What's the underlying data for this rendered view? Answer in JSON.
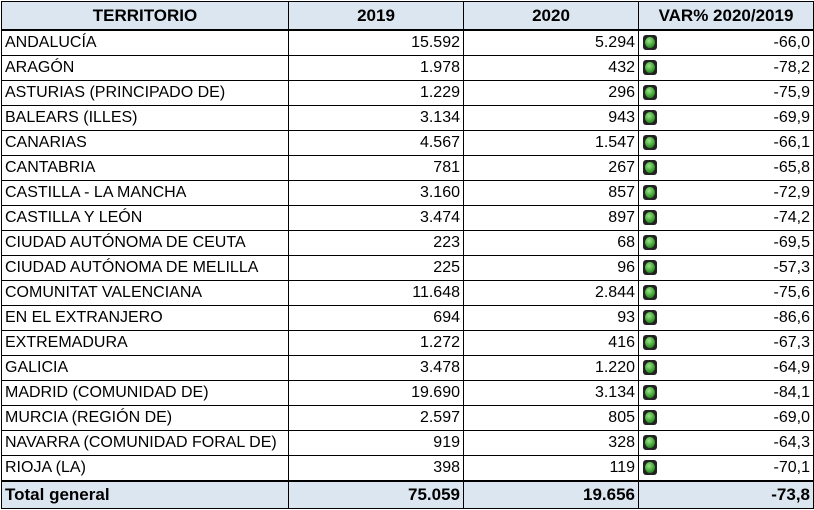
{
  "headers": [
    "TERRITORIO",
    "2019",
    "2020",
    "VAR% 2020/2019"
  ],
  "rows": [
    [
      "ANDALUCÍA",
      "15.592",
      "5.294",
      "-66,0"
    ],
    [
      "ARAGÓN",
      "1.978",
      "432",
      "-78,2"
    ],
    [
      "ASTURIAS (PRINCIPADO DE)",
      "1.229",
      "296",
      "-75,9"
    ],
    [
      "BALEARS (ILLES)",
      "3.134",
      "943",
      "-69,9"
    ],
    [
      "CANARIAS",
      "4.567",
      "1.547",
      "-66,1"
    ],
    [
      "CANTABRIA",
      "781",
      "267",
      "-65,8"
    ],
    [
      "CASTILLA - LA MANCHA",
      "3.160",
      "857",
      "-72,9"
    ],
    [
      "CASTILLA Y LEÓN",
      "3.474",
      "897",
      "-74,2"
    ],
    [
      "CIUDAD AUTÓNOMA DE CEUTA",
      "223",
      "68",
      "-69,5"
    ],
    [
      "CIUDAD AUTÓNOMA DE MELILLA",
      "225",
      "96",
      "-57,3"
    ],
    [
      "COMUNITAT VALENCIANA",
      "11.648",
      "2.844",
      "-75,6"
    ],
    [
      "EN EL EXTRANJERO",
      "694",
      "93",
      "-86,6"
    ],
    [
      "EXTREMADURA",
      "1.272",
      "416",
      "-67,3"
    ],
    [
      "GALICIA",
      "3.478",
      "1.220",
      "-64,9"
    ],
    [
      "MADRID (COMUNIDAD DE)",
      "19.690",
      "3.134",
      "-84,1"
    ],
    [
      "MURCIA (REGIÓN DE)",
      "2.597",
      "805",
      "-69,0"
    ],
    [
      "NAVARRA (COMUNIDAD FORAL DE)",
      "919",
      "328",
      "-64,3"
    ],
    [
      "RIOJA (LA)",
      "398",
      "119",
      "-70,1"
    ]
  ],
  "total": [
    "Total general",
    "75.059",
    "19.656",
    "-73,8"
  ],
  "icon": "green-traffic-light-icon"
}
